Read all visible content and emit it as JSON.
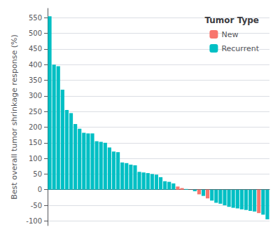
{
  "chart_data": {
    "type": "bar",
    "ylabel": "Best overall tumor shrinkage response (%)",
    "legend_title": "Tumor Type",
    "categories": [
      null,
      null,
      null,
      null,
      null,
      null,
      null,
      null,
      null,
      null,
      null,
      null,
      null,
      null,
      null,
      null,
      null,
      null,
      null,
      null,
      null,
      null,
      null,
      null,
      null,
      null,
      null,
      null,
      null,
      null,
      null,
      null,
      null,
      null,
      null,
      null,
      null,
      null,
      null,
      null,
      null,
      null,
      null,
      null,
      null,
      null,
      null,
      null,
      null,
      null,
      null,
      null
    ],
    "series": [
      {
        "name": "New",
        "color": "#F8766D",
        "values": [
          null,
          null,
          null,
          null,
          null,
          null,
          null,
          null,
          null,
          null,
          null,
          null,
          null,
          null,
          null,
          null,
          null,
          null,
          null,
          null,
          null,
          null,
          null,
          null,
          null,
          null,
          null,
          null,
          null,
          null,
          10,
          5,
          null,
          null,
          null,
          -15,
          null,
          -28,
          null,
          null,
          null,
          null,
          null,
          null,
          null,
          null,
          null,
          null,
          null,
          -75,
          null,
          null
        ]
      },
      {
        "name": "Recurrent",
        "color": "#00BFC4",
        "values": [
          555,
          400,
          395,
          320,
          255,
          245,
          210,
          195,
          182,
          180,
          180,
          155,
          153,
          150,
          135,
          122,
          120,
          87,
          85,
          80,
          78,
          57,
          55,
          53,
          50,
          48,
          40,
          27,
          25,
          20,
          null,
          null,
          2,
          0,
          -5,
          null,
          -20,
          null,
          -35,
          -42,
          -45,
          -50,
          -55,
          -58,
          -60,
          -63,
          -65,
          -68,
          -70,
          null,
          -80,
          -95
        ]
      }
    ],
    "ylim": [
      -115,
      580
    ],
    "yticks": [
      -100,
      -50,
      0,
      50,
      100,
      150,
      200,
      250,
      300,
      350,
      400,
      450,
      500,
      550
    ],
    "grid": true,
    "legend": "upper right",
    "tick_labels": "y"
  }
}
